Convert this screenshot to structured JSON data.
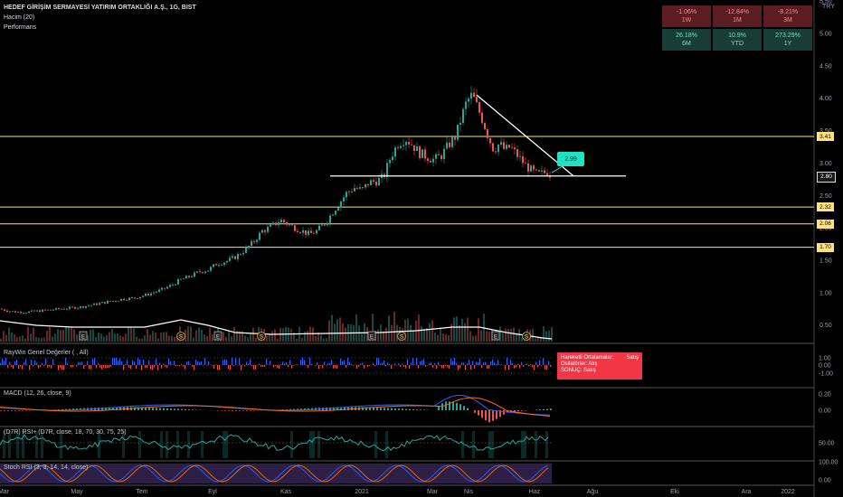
{
  "header": {
    "symbol_title": "HEDEF GİRİŞİM SERMAYESİ YATIRIM ORTAKLIĞI A.Ş., 1G, BIST",
    "volume_label": "Hacim (20)",
    "performance_label": "Performans",
    "currency": "TRY"
  },
  "performance": [
    {
      "value": "-1.06%",
      "period": "1W",
      "tone": "neg"
    },
    {
      "value": "-12.84%",
      "period": "1M",
      "tone": "neg"
    },
    {
      "value": "-8.21%",
      "period": "3M",
      "tone": "neg"
    },
    {
      "value": "26.18%",
      "period": "6M",
      "tone": "pos"
    },
    {
      "value": "10.9%",
      "period": "YTD",
      "tone": "pos"
    },
    {
      "value": "273.29%",
      "period": "1Y",
      "tone": "pos"
    }
  ],
  "price_axis": {
    "ticks": [
      "5.50",
      "5.00",
      "4.50",
      "4.00",
      "3.50",
      "3.00",
      "2.50",
      "2.00",
      "1.50",
      "1.00",
      "0.50"
    ],
    "tags": [
      {
        "label": "3.41",
        "kind": "yellow"
      },
      {
        "label": "2.80",
        "kind": "current"
      },
      {
        "label": "2.32",
        "kind": "yellow"
      },
      {
        "label": "2.06",
        "kind": "yellow"
      },
      {
        "label": "1.70",
        "kind": "yellow"
      }
    ]
  },
  "callout_price": "2.99",
  "event_markers": [
    "E",
    "S",
    "E",
    "S",
    "E",
    "S",
    "E",
    "S"
  ],
  "indicators": {
    "raywin": {
      "label": "RayWin Genel Değerler ( , All)",
      "ticks": [
        "1.00",
        "0.00",
        "-1.00"
      ],
      "signal": {
        "line1_key": "Hareketli Ortalamalar:",
        "line1_val": "Satış",
        "line2_key": "Osilatörler:",
        "line2_val": "Alış",
        "line3_key": "SONUÇ:",
        "line3_val": "Satış"
      }
    },
    "macd": {
      "label": "MACD (12, 26, close, 9)",
      "ticks": [
        "0.20",
        "0.00"
      ]
    },
    "rsi": {
      "label": "(D7R) RSI+ (D7R, close, 18, 70, 30, 75, 25)",
      "ticks": [
        "50.00"
      ]
    },
    "stoch": {
      "label": "Stoch RSI (3, 3, 14, 14, close)",
      "ticks": [
        "100.00",
        "0.00"
      ]
    }
  },
  "time_axis": [
    "Mar",
    "May",
    "Tem",
    "Eyl",
    "Kas",
    "2021",
    "Mar",
    "Nis",
    "Haz",
    "Ağu",
    "Eki",
    "Ara",
    "2022"
  ],
  "colors": {
    "up": "#26a69a",
    "down": "#ef5350",
    "level": "#ffe27a",
    "trend": "#ffffff",
    "accent": "#22e0c2"
  },
  "chart_data": {
    "type": "candlestick",
    "ylim": [
      0.3,
      5.6
    ],
    "price_levels": [
      3.41,
      2.32,
      2.06,
      1.7
    ],
    "current_price": 2.8,
    "trendline_support": 2.8,
    "trendline_resistance_from": 4.05,
    "path": [
      [
        0,
        0.75
      ],
      [
        8,
        0.72
      ],
      [
        18,
        0.7
      ],
      [
        30,
        0.7
      ],
      [
        45,
        0.72
      ],
      [
        60,
        0.74
      ],
      [
        75,
        0.76
      ],
      [
        90,
        0.78
      ],
      [
        105,
        0.82
      ],
      [
        120,
        0.86
      ],
      [
        135,
        0.9
      ],
      [
        150,
        0.92
      ],
      [
        165,
        0.98
      ],
      [
        180,
        1.05
      ],
      [
        190,
        1.12
      ],
      [
        200,
        1.2
      ],
      [
        210,
        1.25
      ],
      [
        220,
        1.32
      ],
      [
        230,
        1.35
      ],
      [
        240,
        1.45
      ],
      [
        250,
        1.48
      ],
      [
        260,
        1.55
      ],
      [
        270,
        1.65
      ],
      [
        280,
        1.78
      ],
      [
        290,
        1.95
      ],
      [
        300,
        2.02
      ],
      [
        310,
        2.12
      ],
      [
        318,
        2.06
      ],
      [
        326,
        2.0
      ],
      [
        334,
        1.95
      ],
      [
        342,
        1.9
      ],
      [
        350,
        1.95
      ],
      [
        360,
        2.08
      ],
      [
        368,
        2.25
      ],
      [
        376,
        2.4
      ],
      [
        384,
        2.55
      ],
      [
        392,
        2.62
      ],
      [
        400,
        2.58
      ],
      [
        408,
        2.7
      ],
      [
        416,
        2.72
      ],
      [
        424,
        2.78
      ],
      [
        432,
        3.1
      ],
      [
        440,
        3.3
      ],
      [
        448,
        3.38
      ],
      [
        456,
        3.28
      ],
      [
        464,
        3.15
      ],
      [
        472,
        3.1
      ],
      [
        480,
        3.05
      ],
      [
        488,
        3.12
      ],
      [
        496,
        3.28
      ],
      [
        504,
        3.42
      ],
      [
        510,
        3.7
      ],
      [
        516,
        3.95
      ],
      [
        522,
        4.05
      ],
      [
        528,
        3.85
      ],
      [
        534,
        3.65
      ],
      [
        540,
        3.4
      ],
      [
        546,
        3.2
      ],
      [
        552,
        3.3
      ],
      [
        558,
        3.2
      ],
      [
        564,
        3.25
      ],
      [
        570,
        3.15
      ],
      [
        576,
        3.05
      ],
      [
        582,
        2.95
      ],
      [
        588,
        2.88
      ],
      [
        594,
        2.82
      ],
      [
        600,
        2.84
      ],
      [
        606,
        2.86
      ],
      [
        610,
        2.8
      ]
    ]
  }
}
